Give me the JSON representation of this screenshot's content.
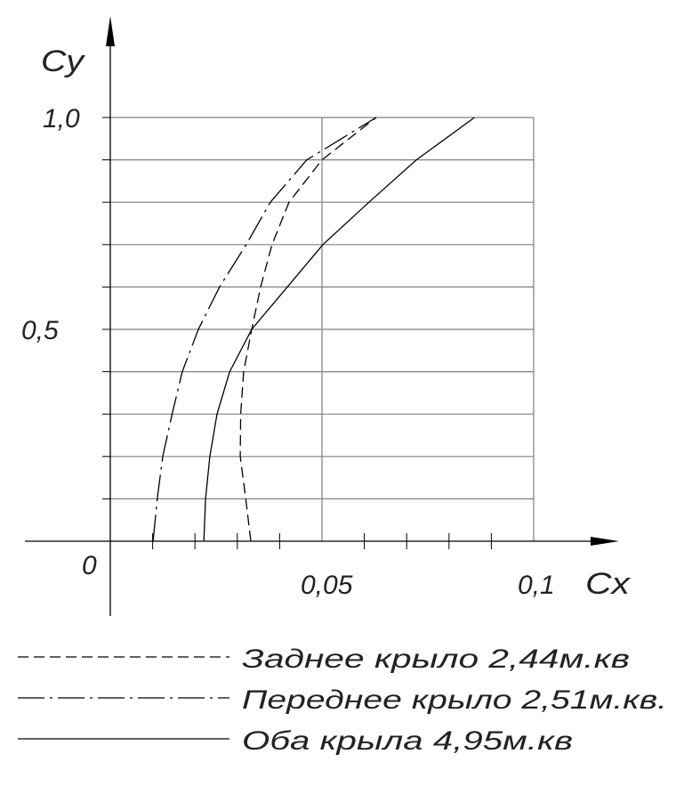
{
  "chart_data": {
    "type": "line",
    "title": "",
    "xlabel": "Cx",
    "ylabel": "Cy",
    "xlim": [
      0,
      0.1
    ],
    "ylim": [
      0,
      1.0
    ],
    "x_tick_labels": [
      "0,05",
      "0,1"
    ],
    "y_tick_labels": [
      "0,5",
      "1,0"
    ],
    "origin_label": "0",
    "grid": true,
    "legend_position": "bottom",
    "colors": {
      "line": "#000000",
      "grid": "#808080"
    },
    "series": [
      {
        "name": "Заднее крыло 2,44м.кв",
        "style": "dashed",
        "y": [
          0,
          0.1,
          0.2,
          0.3,
          0.4,
          0.5,
          0.6,
          0.7,
          0.8,
          0.9,
          1.0
        ],
        "x": [
          0.0332,
          0.032,
          0.0307,
          0.0308,
          0.0315,
          0.0334,
          0.0355,
          0.0382,
          0.0422,
          0.05,
          0.0628
        ]
      },
      {
        "name": "Переднее крыло 2,51м.кв.",
        "style": "dashdot",
        "y": [
          0,
          0.1,
          0.2,
          0.3,
          0.4,
          0.5,
          0.6,
          0.7,
          0.8,
          0.9,
          1.0
        ],
        "x": [
          0.0101,
          0.0111,
          0.0124,
          0.0146,
          0.017,
          0.0208,
          0.0258,
          0.0321,
          0.0378,
          0.0464,
          0.0628
        ]
      },
      {
        "name": "Оба крыла 4,95м.кв",
        "style": "solid",
        "y": [
          0,
          0.1,
          0.2,
          0.3,
          0.4,
          0.5,
          0.6,
          0.7,
          0.8,
          0.9,
          1.0
        ],
        "x": [
          0.0221,
          0.0225,
          0.0235,
          0.0252,
          0.0282,
          0.0334,
          0.0418,
          0.0502,
          0.0611,
          0.0723,
          0.086
        ]
      }
    ]
  }
}
